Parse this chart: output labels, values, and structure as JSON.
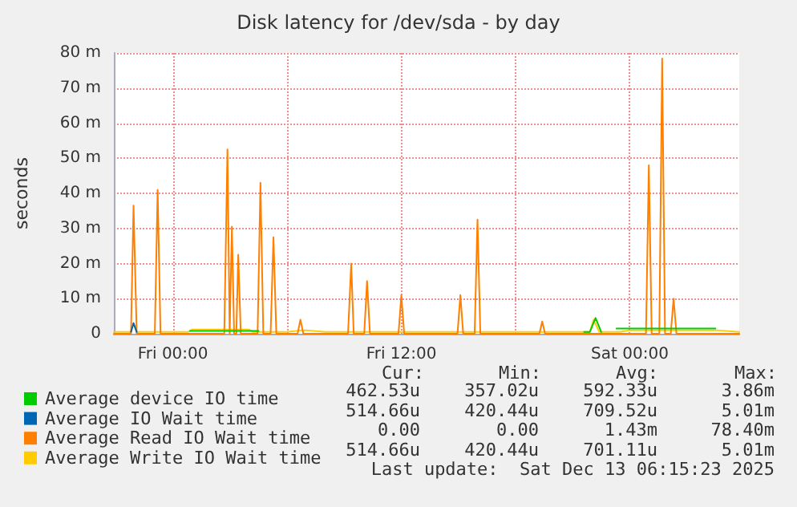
{
  "chart_data": {
    "type": "line",
    "title": "Disk latency for /dev/sda - by day",
    "ylabel": "seconds",
    "series": [
      {
        "name": "Average device IO time",
        "color": "#00cc00",
        "x": [
          "2025-12-12T00:54",
          "2025-12-12T01:30",
          "2025-12-12T03:00",
          "2025-12-12T04:30",
          "2025-12-12T04:36",
          "2025-12-12T21:36",
          "2025-12-12T21:54",
          "2025-12-12T22:12",
          "2025-12-12T22:30",
          "2025-12-12T22:48",
          "2025-12-12T23:18",
          "2025-12-13T00:00",
          "2025-12-13T04:30"
        ],
        "values": [
          0.8,
          0.8,
          0.8,
          0.8,
          null,
          0.5,
          0.5,
          4.5,
          0.5,
          null,
          1.5,
          1.5,
          1.5
        ]
      },
      {
        "name": "Average IO Wait time",
        "color": "#0066b3",
        "x": [
          "2025-12-11T21:48",
          "2025-12-11T21:56",
          "2025-12-11T22:06"
        ],
        "values": [
          0.5,
          3,
          0.5
        ]
      },
      {
        "name": "Average Read IO Wait time",
        "color": "#ff8000",
        "x": [
          "2025-12-11T20:54",
          "2025-12-11T21:48",
          "2025-12-11T21:56",
          "2025-12-11T22:06",
          "2025-12-11T23:03",
          "2025-12-11T23:12",
          "2025-12-11T23:21",
          "2025-12-12T02:42",
          "2025-12-12T02:52",
          "2025-12-12T02:59",
          "2025-12-12T03:06",
          "2025-12-12T03:13",
          "2025-12-12T03:20",
          "2025-12-12T03:26",
          "2025-12-12T03:34",
          "2025-12-12T04:27",
          "2025-12-12T04:36",
          "2025-12-12T04:45",
          "2025-12-12T05:08",
          "2025-12-12T05:17",
          "2025-12-12T05:26",
          "2025-12-12T06:33",
          "2025-12-12T06:42",
          "2025-12-12T06:51",
          "2025-12-12T09:12",
          "2025-12-12T09:22",
          "2025-12-12T09:30",
          "2025-12-12T10:03",
          "2025-12-12T10:12",
          "2025-12-12T10:21",
          "2025-12-12T11:51",
          "2025-12-12T12:00",
          "2025-12-12T12:09",
          "2025-12-12T14:57",
          "2025-12-12T15:06",
          "2025-12-12T15:15",
          "2025-12-12T15:51",
          "2025-12-12T16:00",
          "2025-12-12T16:09",
          "2025-12-12T19:15",
          "2025-12-12T19:24",
          "2025-12-12T19:33",
          "2025-12-13T00:51",
          "2025-12-13T01:00",
          "2025-12-13T01:09",
          "2025-12-13T01:33",
          "2025-12-13T01:42",
          "2025-12-13T01:51",
          "2025-12-13T02:09",
          "2025-12-13T02:18",
          "2025-12-13T02:27",
          "2025-12-13T05:45"
        ],
        "values": [
          0,
          0,
          36.5,
          0,
          0,
          41,
          0,
          0,
          52.5,
          0,
          30.5,
          0,
          0,
          22.5,
          0,
          0,
          43,
          0,
          0,
          27.5,
          0,
          0,
          4,
          0,
          0,
          20,
          0,
          0,
          15,
          0,
          0,
          11,
          0,
          0,
          11,
          0,
          0,
          32.5,
          0,
          0,
          3.5,
          0,
          0,
          48,
          0,
          0,
          78.4,
          0,
          0,
          10,
          0,
          0
        ]
      },
      {
        "name": "Average Write IO Wait time",
        "color": "#ffcc00",
        "x": [
          "2025-12-11T20:54",
          "2025-12-11T21:48",
          "2025-12-11T21:56",
          "2025-12-11T22:06",
          "2025-12-12T00:48",
          "2025-12-12T01:00",
          "2025-12-12T04:00",
          "2025-12-12T04:12",
          "2025-12-12T06:00",
          "2025-12-12T06:48",
          "2025-12-12T07:00",
          "2025-12-12T08:00",
          "2025-12-12T21:54",
          "2025-12-12T22:06",
          "2025-12-12T22:24",
          "2025-12-12T23:30",
          "2025-12-13T00:00",
          "2025-12-13T04:30",
          "2025-12-13T05:45"
        ],
        "values": [
          0.5,
          0.5,
          3,
          0.5,
          0.5,
          1.2,
          1.2,
          0.5,
          0.5,
          1,
          1,
          0.5,
          0.5,
          4,
          0.5,
          0.5,
          1,
          1,
          0.5
        ]
      }
    ],
    "xlim": [
      "2025-12-11T20:54",
      "2025-12-13T05:45"
    ],
    "xticks": [
      {
        "value": "2025-12-12T00:00",
        "label": "Fri 00:00"
      },
      {
        "value": "2025-12-12T06:00",
        "label": null
      },
      {
        "value": "2025-12-12T12:00",
        "label": "Fri 12:00"
      },
      {
        "value": "2025-12-12T18:00",
        "label": null
      },
      {
        "value": "2025-12-13T00:00",
        "label": "Sat 00:00"
      }
    ],
    "ylim": [
      0,
      80
    ],
    "yticks": [
      0,
      {
        "value": 10,
        "label": "10 m"
      },
      {
        "value": 20,
        "label": "20 m"
      },
      {
        "value": 30,
        "label": "30 m"
      },
      {
        "value": 40,
        "label": "40 m"
      },
      {
        "value": 50,
        "label": "50 m"
      },
      {
        "value": 60,
        "label": "60 m"
      },
      {
        "value": 70,
        "label": "70 m"
      },
      {
        "value": 80,
        "label": "80 m"
      }
    ],
    "grid": true,
    "legend": "bottom",
    "marker": "none",
    "line_style": "solid",
    "annotations": [
      "Cur:",
      "Min:",
      "Avg:",
      "Max:",
      "462.53u",
      "357.02u",
      "592.33u",
      "3.86m",
      "514.66u",
      "420.44u",
      "709.52u",
      "5.01m",
      "0.00",
      "0.00",
      "1.43m",
      "78.40m",
      "514.66u",
      "420.44u",
      "701.11u",
      "5.01m",
      "Last update:  Sat Dec 13 06:15:23 2025"
    ]
  }
}
